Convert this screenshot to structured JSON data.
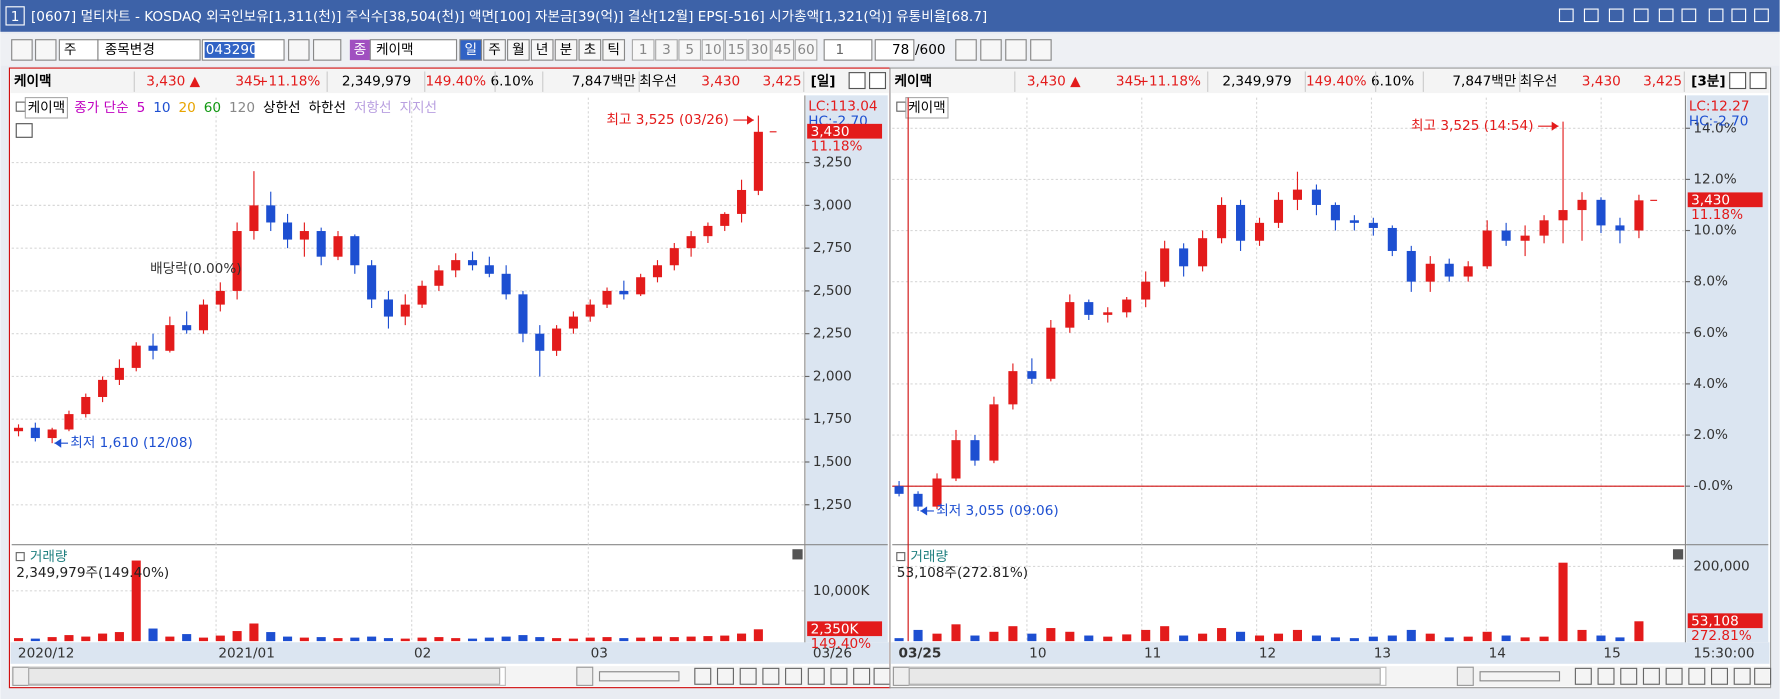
{
  "window": {
    "icon": "1",
    "title": "[0607] 멀티차트 - KOSDAQ 외국인보유[1,311(천)] 주식수[38,504(천)] 액면[100] 자본금[39(억)] 결산[12월] EPS[-516] 시가총액[1,321(억)] 유통비율[68.7]"
  },
  "toolbar": {
    "period": "주",
    "stock_change": "종목변경",
    "code": "043290",
    "tag": "종",
    "name": "케이맥",
    "periods": [
      "일",
      "주",
      "월",
      "년",
      "분",
      "초",
      "틱"
    ],
    "intervals": [
      "1",
      "3",
      "5",
      "10",
      "15",
      "30",
      "45",
      "60"
    ],
    "unit": "1",
    "count": "78",
    "max": "/600"
  },
  "panels": [
    {
      "header": {
        "name": "케이맥",
        "price": "3,430 ▲",
        "change": "345",
        "rate": "+11.18%",
        "volume": "2,349,979",
        "vol_ratio": "149.40%",
        "turnover": "6.10%",
        "amount": "7,847백만",
        "best": "최우선",
        "ask": "3,430",
        "bid": "3,425",
        "period": "[일]"
      },
      "legend": [
        "케이맥",
        "종가 단순",
        "5",
        "10",
        "20",
        "60",
        "120",
        "상한선",
        "하한선",
        "저항선",
        "지지선"
      ]
    },
    {
      "header": {
        "name": "케이맥",
        "price": "3,430 ▲",
        "change": "345",
        "rate": "+11.18%",
        "volume": "2,349,979",
        "vol_ratio": "149.40%",
        "turnover": "6.10%",
        "amount": "7,847백만",
        "best": "최우선",
        "ask": "3,430",
        "bid": "3,425",
        "period": "[3분]"
      },
      "legend": [
        "케이맥"
      ]
    }
  ],
  "chart_data": [
    {
      "type": "candlestick",
      "x_labels": [
        "2020/12",
        "2021/01",
        "02",
        "03"
      ],
      "x_end": "03/26",
      "ohlc": [
        [
          1680,
          1720,
          1650,
          1700
        ],
        [
          1700,
          1730,
          1620,
          1640
        ],
        [
          1640,
          1700,
          1610,
          1690
        ],
        [
          1690,
          1800,
          1680,
          1780
        ],
        [
          1780,
          1900,
          1760,
          1880
        ],
        [
          1880,
          2000,
          1850,
          1980
        ],
        [
          1980,
          2100,
          1950,
          2050
        ],
        [
          2050,
          2200,
          2030,
          2180
        ],
        [
          2180,
          2250,
          2100,
          2150
        ],
        [
          2150,
          2350,
          2140,
          2300
        ],
        [
          2300,
          2380,
          2250,
          2270
        ],
        [
          2270,
          2450,
          2250,
          2420
        ],
        [
          2420,
          2550,
          2380,
          2500
        ],
        [
          2500,
          2900,
          2450,
          2850
        ],
        [
          2850,
          3200,
          2800,
          3000
        ],
        [
          3000,
          3080,
          2850,
          2900
        ],
        [
          2900,
          2950,
          2750,
          2800
        ],
        [
          2800,
          2900,
          2700,
          2850
        ],
        [
          2850,
          2870,
          2650,
          2700
        ],
        [
          2700,
          2850,
          2680,
          2820
        ],
        [
          2820,
          2830,
          2600,
          2650
        ],
        [
          2650,
          2680,
          2400,
          2450
        ],
        [
          2450,
          2500,
          2280,
          2350
        ],
        [
          2350,
          2480,
          2300,
          2420
        ],
        [
          2420,
          2560,
          2400,
          2530
        ],
        [
          2530,
          2650,
          2500,
          2620
        ],
        [
          2620,
          2720,
          2580,
          2680
        ],
        [
          2680,
          2730,
          2620,
          2650
        ],
        [
          2650,
          2700,
          2580,
          2600
        ],
        [
          2600,
          2650,
          2450,
          2480
        ],
        [
          2480,
          2500,
          2200,
          2250
        ],
        [
          2250,
          2300,
          2000,
          2150
        ],
        [
          2150,
          2300,
          2120,
          2280
        ],
        [
          2280,
          2380,
          2250,
          2350
        ],
        [
          2350,
          2450,
          2320,
          2420
        ],
        [
          2420,
          2520,
          2400,
          2500
        ],
        [
          2500,
          2560,
          2450,
          2480
        ],
        [
          2480,
          2600,
          2470,
          2580
        ],
        [
          2580,
          2680,
          2550,
          2650
        ],
        [
          2650,
          2780,
          2620,
          2750
        ],
        [
          2750,
          2850,
          2700,
          2820
        ],
        [
          2820,
          2900,
          2780,
          2880
        ],
        [
          2880,
          2960,
          2850,
          2950
        ],
        [
          2950,
          3150,
          2900,
          3090
        ],
        [
          3085,
          3525,
          3060,
          3430
        ]
      ],
      "volume": [
        600,
        500,
        800,
        1200,
        900,
        1500,
        1800,
        16000,
        2500,
        900,
        1400,
        700,
        1100,
        2000,
        3500,
        1800,
        900,
        700,
        800,
        600,
        700,
        900,
        600,
        500,
        700,
        800,
        600,
        500,
        700,
        900,
        1200,
        800,
        600,
        500,
        700,
        800,
        600,
        700,
        900,
        800,
        900,
        1000,
        1100,
        1500,
        2350
      ],
      "ylim": [
        1030,
        3630
      ],
      "yticks": [
        {
          "value": 1250,
          "label": "1,250"
        },
        {
          "value": 1500,
          "label": "1,500"
        },
        {
          "value": 1750,
          "label": "1,750"
        },
        {
          "value": 2000,
          "label": "2,000"
        },
        {
          "value": 2250,
          "label": "2,250"
        },
        {
          "value": 2500,
          "label": "2,500"
        },
        {
          "value": 2750,
          "label": "2,750"
        },
        {
          "value": 3000,
          "label": "3,000"
        },
        {
          "value": 3250,
          "label": "3,250"
        }
      ],
      "volume_ylim": [
        0,
        17800
      ],
      "volume_yticks": [
        {
          "value": 10000,
          "label": "10,000K"
        }
      ],
      "high_label": "최고 3,525 (03/26)",
      "low_label": "최저 1,610 (12/08)",
      "event_label": "배당락(0.00%)",
      "lc": "LC:113.04",
      "hc": "HC:-2.70",
      "last_price": "3,430",
      "last_rate": "11.18%",
      "volume_title": "거래량",
      "volume_text": "2,349,979주(149.40%)",
      "last_volume": "2,350K",
      "last_volume_rate": "149.40%"
    },
    {
      "type": "candlestick",
      "x_labels": [
        "03/25",
        "10",
        "11",
        "12",
        "13",
        "14",
        "15"
      ],
      "x_end": "15:30:00",
      "ohlc": [
        [
          0,
          0.2,
          -0.4,
          -0.3
        ],
        [
          -0.3,
          -0.2,
          -0.97,
          -0.8
        ],
        [
          -0.8,
          0.5,
          -0.9,
          0.3
        ],
        [
          0.3,
          2.2,
          0.2,
          1.8
        ],
        [
          1.8,
          2.0,
          0.8,
          1.0
        ],
        [
          1.0,
          3.5,
          0.9,
          3.2
        ],
        [
          3.2,
          4.8,
          3.0,
          4.5
        ],
        [
          4.5,
          5.0,
          4.0,
          4.2
        ],
        [
          4.2,
          6.5,
          4.1,
          6.2
        ],
        [
          6.2,
          7.5,
          6.0,
          7.2
        ],
        [
          7.2,
          7.3,
          6.5,
          6.7
        ],
        [
          6.7,
          7.0,
          6.4,
          6.8
        ],
        [
          6.8,
          7.4,
          6.6,
          7.3
        ],
        [
          7.3,
          8.4,
          7.0,
          8.0
        ],
        [
          8.0,
          9.6,
          7.8,
          9.3
        ],
        [
          9.3,
          9.5,
          8.2,
          8.6
        ],
        [
          8.6,
          10.0,
          8.4,
          9.7
        ],
        [
          9.7,
          11.3,
          9.5,
          11.0
        ],
        [
          11.0,
          11.2,
          9.2,
          9.6
        ],
        [
          9.6,
          10.5,
          9.4,
          10.3
        ],
        [
          10.3,
          11.5,
          10.1,
          11.2
        ],
        [
          11.2,
          12.3,
          10.8,
          11.6
        ],
        [
          11.6,
          11.8,
          10.6,
          11.0
        ],
        [
          11.0,
          11.1,
          10.0,
          10.4
        ],
        [
          10.4,
          10.6,
          10.0,
          10.3
        ],
        [
          10.3,
          10.5,
          9.8,
          10.1
        ],
        [
          10.1,
          10.2,
          9.0,
          9.2
        ],
        [
          9.2,
          9.4,
          7.6,
          8.0
        ],
        [
          8.0,
          9.0,
          7.6,
          8.7
        ],
        [
          8.7,
          8.9,
          8.0,
          8.2
        ],
        [
          8.2,
          8.8,
          8.0,
          8.6
        ],
        [
          8.6,
          10.4,
          8.5,
          10.0
        ],
        [
          10.0,
          10.3,
          9.4,
          9.6
        ],
        [
          9.6,
          10.2,
          9.0,
          9.8
        ],
        [
          9.8,
          10.6,
          9.5,
          10.4
        ],
        [
          10.4,
          14.26,
          9.5,
          10.8
        ],
        [
          10.8,
          11.5,
          9.6,
          11.2
        ],
        [
          11.2,
          11.3,
          9.9,
          10.2
        ],
        [
          10.2,
          10.5,
          9.5,
          10.0
        ],
        [
          10.0,
          11.4,
          9.7,
          11.18
        ]
      ],
      "volume": [
        8000,
        30000,
        20000,
        45000,
        15000,
        25000,
        40000,
        20000,
        35000,
        25000,
        15000,
        12000,
        18000,
        30000,
        40000,
        15000,
        20000,
        35000,
        25000,
        15000,
        20000,
        30000,
        15000,
        10000,
        8000,
        12000,
        15000,
        30000,
        20000,
        10000,
        12000,
        25000,
        15000,
        10000,
        12000,
        210000,
        30000,
        15000,
        10000,
        53108
      ],
      "ylim": [
        -2.2,
        15.2
      ],
      "yticks": [
        {
          "value": 0,
          "label": "-0.0%"
        },
        {
          "value": 2,
          "label": "2.0%"
        },
        {
          "value": 4,
          "label": "4.0%"
        },
        {
          "value": 6,
          "label": "6.0%"
        },
        {
          "value": 8,
          "label": "8.0%"
        },
        {
          "value": 10,
          "label": "10.0%"
        },
        {
          "value": 12,
          "label": "12.0%"
        },
        {
          "value": 14,
          "label": "14.0%"
        }
      ],
      "volume_ylim": [
        0,
        240000
      ],
      "volume_yticks": [
        {
          "value": 200000,
          "label": "200,000"
        }
      ],
      "high_label": "최고 3,525 (14:54)",
      "low_label": "최저 3,055 (09:06)",
      "lc": "LC:12.27",
      "hc": "HC:-2.70",
      "last_price": "3,430",
      "last_rate": "11.18%",
      "volume_title": "거래량",
      "volume_text": "53,108주(272.81%)",
      "last_volume": "53,108",
      "last_volume_rate": "272.81%"
    }
  ]
}
